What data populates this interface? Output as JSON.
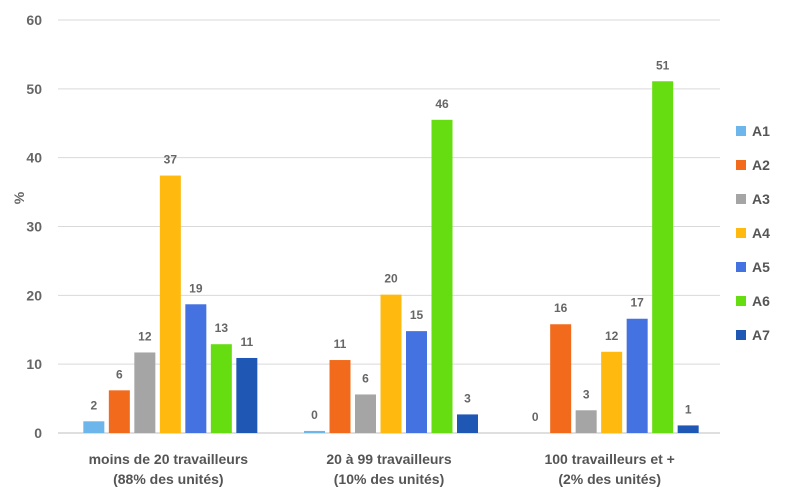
{
  "chart_data": {
    "type": "bar",
    "ylabel": "%",
    "ylim": [
      0,
      60
    ],
    "yticks": [
      0,
      10,
      20,
      30,
      40,
      50,
      60
    ],
    "grid": true,
    "legend_position": "right",
    "categories": [
      [
        "moins de 20 travailleurs",
        "(88% des unités)"
      ],
      [
        "20 à 99 travailleurs",
        "(10% des unités)"
      ],
      [
        "100 travailleurs et +",
        "(2% des unités)"
      ]
    ],
    "series": [
      {
        "name": "A1",
        "color": "#6cb6ec",
        "values": [
          1.7,
          0.3,
          0
        ],
        "labels": [
          "2",
          "0",
          "0"
        ]
      },
      {
        "name": "A2",
        "color": "#f26b1d",
        "values": [
          6.2,
          10.6,
          15.8
        ],
        "labels": [
          "6",
          "11",
          "16"
        ]
      },
      {
        "name": "A3",
        "color": "#a5a5a5",
        "values": [
          11.7,
          5.6,
          3.3
        ],
        "labels": [
          "12",
          "6",
          "3"
        ]
      },
      {
        "name": "A4",
        "color": "#ffb90f",
        "values": [
          37.4,
          20.1,
          11.8
        ],
        "labels": [
          "37",
          "20",
          "12"
        ]
      },
      {
        "name": "A5",
        "color": "#4472e0",
        "values": [
          18.7,
          14.8,
          16.6
        ],
        "labels": [
          "19",
          "15",
          "17"
        ]
      },
      {
        "name": "A6",
        "color": "#66dd11",
        "values": [
          12.9,
          45.5,
          51.1
        ],
        "labels": [
          "13",
          "46",
          "51"
        ]
      },
      {
        "name": "A7",
        "color": "#1f57b5",
        "values": [
          10.9,
          2.7,
          1.1
        ],
        "labels": [
          "11",
          "3",
          "1"
        ]
      }
    ]
  }
}
